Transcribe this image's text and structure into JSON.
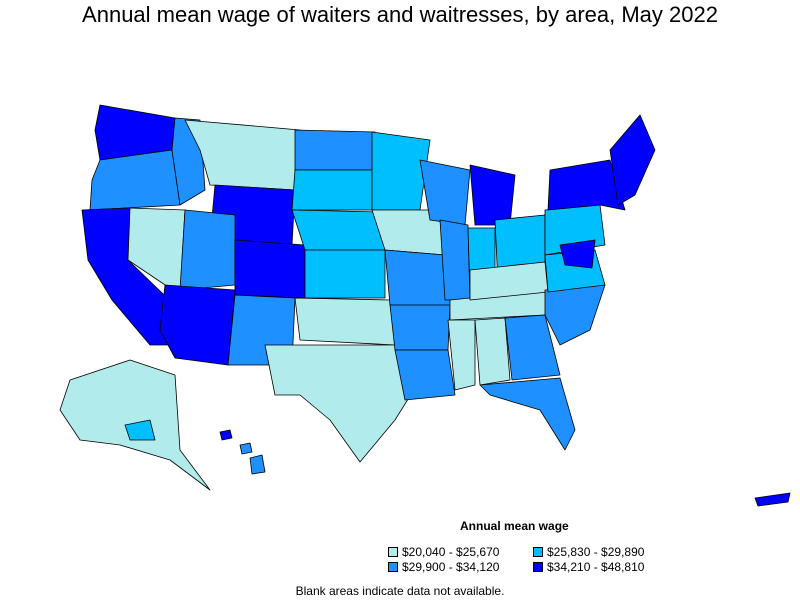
{
  "title": "Annual mean wage of waiters and waitresses, by area, May 2022",
  "legend": {
    "title": "Annual mean wage",
    "items": [
      {
        "label": "$20,040 - $25,670",
        "color": "#b2ebeb"
      },
      {
        "label": "$25,830 - $29,890",
        "color": "#00bfff"
      },
      {
        "label": "$29,900 - $34,120",
        "color": "#1e90ff"
      },
      {
        "label": "$34,210 - $48,810",
        "color": "#0000ff"
      }
    ]
  },
  "note": "Blank areas indicate data not available."
}
